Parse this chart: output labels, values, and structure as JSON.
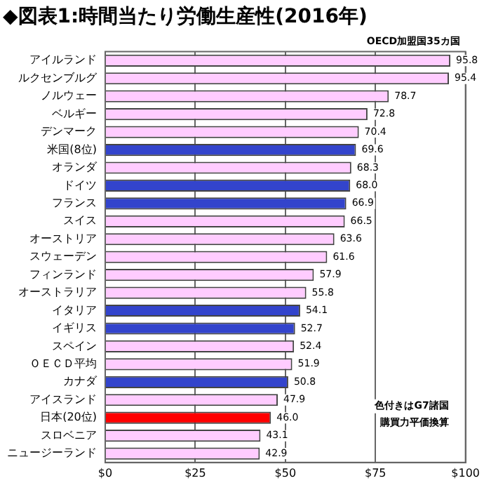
{
  "chart_data": {
    "type": "bar",
    "orientation": "horizontal",
    "title": "◆図表1:時間当たり労働生産性(2016年)",
    "categories": [
      "アイルランド",
      "ルクセンブルグ",
      "ノルウェー",
      "ベルギー",
      "デンマーク",
      "米国(8位)",
      "オランダ",
      "ドイツ",
      "フランス",
      "スイス",
      "オーストリア",
      "スウェーデン",
      "フィンランド",
      "オーストラリア",
      "イタリア",
      "イギリス",
      "スペイン",
      "ＯＥＣＤ平均",
      "カナダ",
      "アイスランド",
      "日本(20位)",
      "スロベニア",
      "ニュージーランド"
    ],
    "values": [
      95.8,
      95.4,
      78.7,
      72.8,
      70.4,
      69.6,
      68.3,
      68.0,
      66.9,
      66.5,
      63.6,
      61.6,
      57.9,
      55.8,
      54.1,
      52.7,
      52.4,
      51.9,
      50.8,
      47.9,
      46.0,
      43.1,
      42.9
    ],
    "value_labels": [
      "95.8",
      "95.4",
      "78.7",
      "72.8",
      "70.4",
      "69.6",
      "68.3",
      "68.0",
      "66.9",
      "66.5",
      "63.6",
      "61.6",
      "57.9",
      "55.8",
      "54.1",
      "52.7",
      "52.4",
      "51.9",
      "50.8",
      "47.9",
      "46.0",
      "43.1",
      "42.9"
    ],
    "colors": [
      "#ffccff",
      "#ffccff",
      "#ffccff",
      "#ffccff",
      "#ffccff",
      "#3344cc",
      "#ffccff",
      "#3344cc",
      "#3344cc",
      "#ffccff",
      "#ffccff",
      "#ffccff",
      "#ffccff",
      "#ffccff",
      "#3344cc",
      "#3344cc",
      "#ffccff",
      "#ffccff",
      "#3344cc",
      "#ffccff",
      "#ff0000",
      "#ffccff",
      "#ffccff"
    ],
    "xlim": [
      0,
      100
    ],
    "xticks": [
      {
        "value": 0,
        "label": "$0"
      },
      {
        "value": 25,
        "label": "$25"
      },
      {
        "value": 50,
        "label": "$50"
      },
      {
        "value": 75,
        "label": "$75"
      },
      {
        "value": 100,
        "label": "$100"
      }
    ],
    "grid": "x",
    "annotations": [
      "OECD加盟国35カ国",
      "色付きはG7諸国",
      "購買力平価換算"
    ]
  }
}
